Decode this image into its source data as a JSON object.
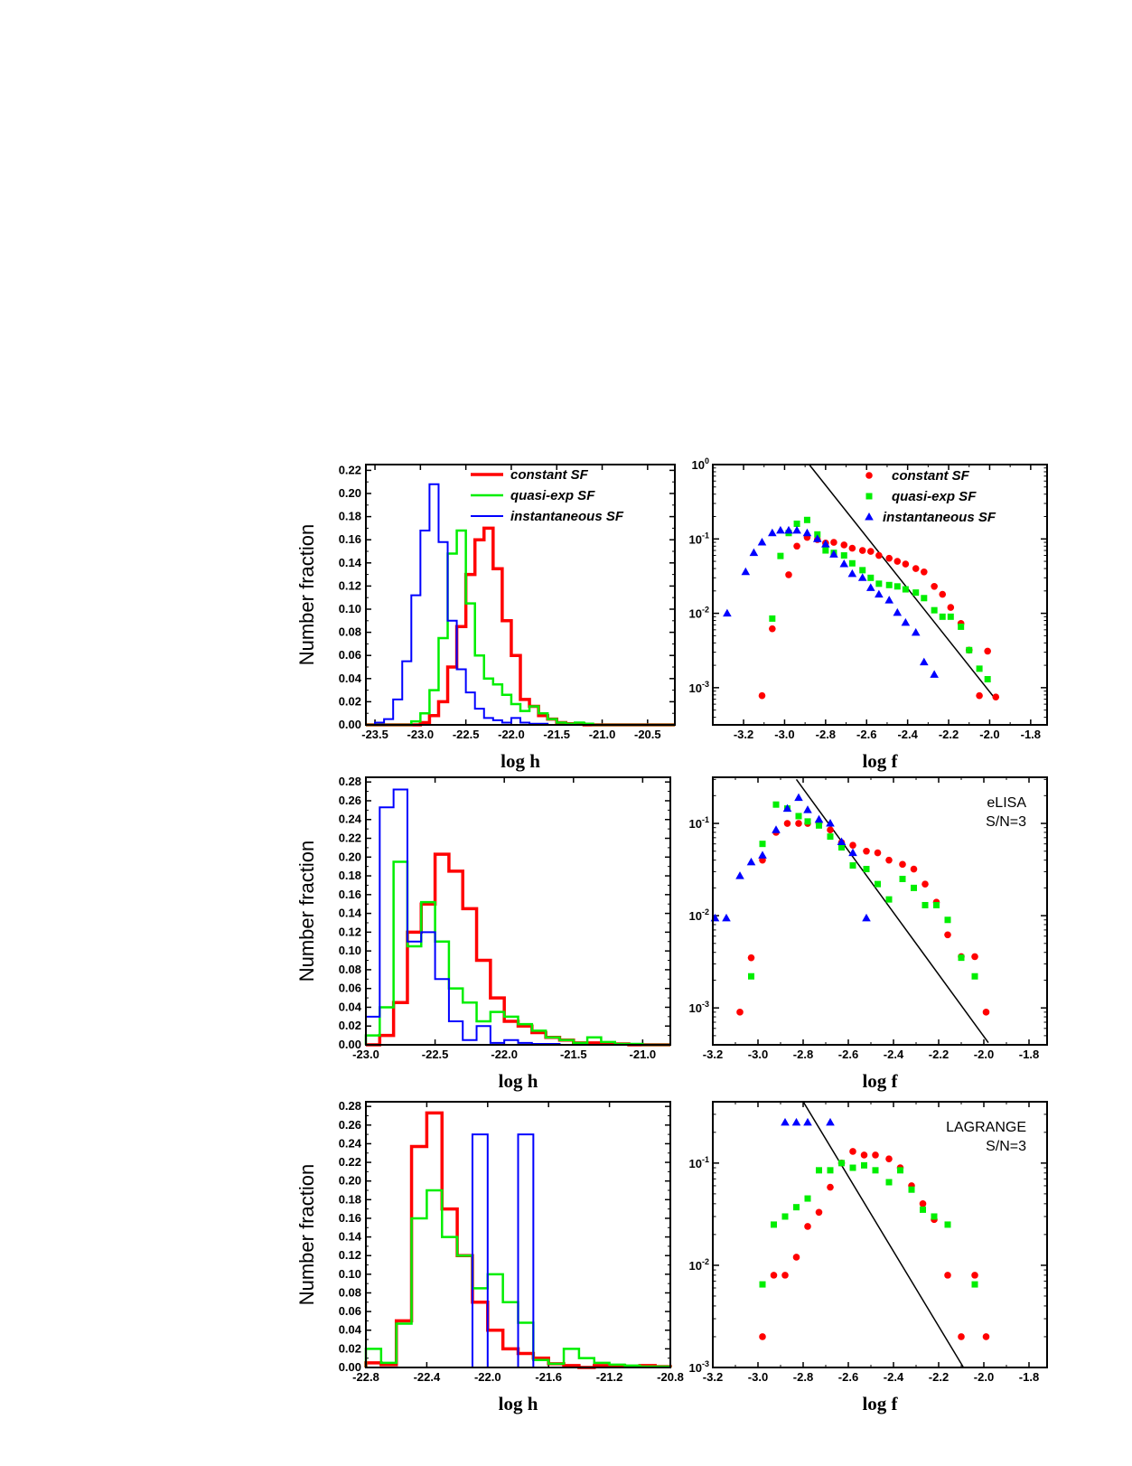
{
  "colors": {
    "constant": "#ff0000",
    "quasi": "#00ee00",
    "instant": "#0000ff",
    "fit": "#000000"
  },
  "chart_data": [
    {
      "id": "hist1",
      "type": "bar",
      "subtype": "step-histogram",
      "xlabel": "log h",
      "ylabel": "Number fraction",
      "xlim": [
        -23.6,
        -20.2
      ],
      "ylim": [
        0,
        0.225
      ],
      "xticks": [
        "-23.5",
        "-23.0",
        "-22.5",
        "-22.0",
        "-21.5",
        "-21.0",
        "-20.5"
      ],
      "yticks": [
        "0.00",
        "0.02",
        "0.04",
        "0.06",
        "0.08",
        "0.10",
        "0.12",
        "0.14",
        "0.16",
        "0.18",
        "0.20",
        "0.22"
      ],
      "bin_start": -23.6,
      "bin_width": 0.1,
      "legend": [
        "constant SF",
        "quasi-exp SF",
        "instantaneous SF"
      ],
      "series": [
        {
          "name": "constant SF",
          "values": [
            0,
            0,
            0,
            0,
            0,
            0,
            0.002,
            0.008,
            0.02,
            0.05,
            0.085,
            0.13,
            0.16,
            0.17,
            0.135,
            0.09,
            0.06,
            0.022,
            0.016,
            0.008,
            0.005,
            0.002,
            0.001,
            0.001,
            0,
            0,
            0,
            0,
            0,
            0,
            0,
            0,
            0,
            0
          ]
        },
        {
          "name": "quasi-exp SF",
          "values": [
            0,
            0,
            0,
            0,
            0,
            0.003,
            0.01,
            0.03,
            0.075,
            0.148,
            0.168,
            0.105,
            0.06,
            0.04,
            0.035,
            0.026,
            0.018,
            0.012,
            0.016,
            0.01,
            0.005,
            0.002,
            0.001,
            0.002,
            0.001,
            0,
            0,
            0,
            0,
            0,
            0,
            0,
            0,
            0
          ]
        },
        {
          "name": "instantaneous SF",
          "values": [
            0,
            0.002,
            0.005,
            0.022,
            0.055,
            0.112,
            0.168,
            0.208,
            0.158,
            0.09,
            0.048,
            0.028,
            0.014,
            0.006,
            0.004,
            0.002,
            0.006,
            0.002,
            0.001,
            0.001,
            0,
            0,
            0,
            0,
            0,
            0,
            0,
            0,
            0,
            0,
            0,
            0,
            0,
            0
          ]
        }
      ]
    },
    {
      "id": "freq1",
      "type": "scatter",
      "yscale": "log",
      "xlabel": "log f",
      "xlim": [
        -3.35,
        -1.72
      ],
      "ylim_log10": [
        -3.5,
        0
      ],
      "xticks": [
        "-3.2",
        "-3.0",
        "-2.8",
        "-2.6",
        "-2.4",
        "-2.2",
        "-2.0",
        "-1.8"
      ],
      "yticks": [
        {
          "base": "10",
          "exp": "0",
          "value": 0
        },
        {
          "base": "10",
          "exp": "-1",
          "value": -1
        },
        {
          "base": "10",
          "exp": "-2",
          "value": -2
        },
        {
          "base": "10",
          "exp": "-3",
          "value": -3
        }
      ],
      "legend": [
        "constant SF",
        "quasi-exp SF",
        "instantaneous SF"
      ],
      "fit_line": {
        "x": [
          -2.88,
          -1.98
        ],
        "y": [
          1.0,
          0.00075
        ]
      },
      "series": [
        {
          "name": "constant SF",
          "x": [
            -3.11,
            -3.06,
            -2.98,
            -2.94,
            -2.89,
            -2.84,
            -2.8,
            -2.76,
            -2.71,
            -2.67,
            -2.62,
            -2.58,
            -2.54,
            -2.49,
            -2.45,
            -2.41,
            -2.36,
            -2.32,
            -2.27,
            -2.23,
            -2.19,
            -2.14,
            -2.1,
            -2.05,
            -2.01,
            -1.97
          ],
          "y": [
            0.00078,
            0.0062,
            0.033,
            0.08,
            0.105,
            0.098,
            0.088,
            0.09,
            0.083,
            0.075,
            0.07,
            0.068,
            0.06,
            0.055,
            0.05,
            0.046,
            0.04,
            0.036,
            0.023,
            0.018,
            0.012,
            0.0073,
            0.0032,
            0.00078,
            0.0031,
            0.00075
          ]
        },
        {
          "name": "quasi-exp SF",
          "x": [
            -3.06,
            -3.02,
            -2.98,
            -2.94,
            -2.89,
            -2.84,
            -2.8,
            -2.76,
            -2.71,
            -2.67,
            -2.62,
            -2.58,
            -2.54,
            -2.49,
            -2.45,
            -2.41,
            -2.36,
            -2.32,
            -2.27,
            -2.23,
            -2.19,
            -2.14,
            -2.1,
            -2.05,
            -2.01
          ],
          "y": [
            0.0085,
            0.059,
            0.12,
            0.16,
            0.18,
            0.115,
            0.07,
            0.065,
            0.06,
            0.047,
            0.038,
            0.03,
            0.025,
            0.024,
            0.023,
            0.021,
            0.019,
            0.016,
            0.011,
            0.009,
            0.009,
            0.0066,
            0.0032,
            0.0018,
            0.0013
          ]
        },
        {
          "name": "instantaneous SF",
          "x": [
            -3.28,
            -3.19,
            -3.15,
            -3.11,
            -3.06,
            -3.02,
            -2.98,
            -2.94,
            -2.89,
            -2.84,
            -2.8,
            -2.76,
            -2.71,
            -2.67,
            -2.62,
            -2.58,
            -2.54,
            -2.49,
            -2.45,
            -2.41,
            -2.36,
            -2.32,
            -2.27
          ],
          "y": [
            0.01,
            0.036,
            0.065,
            0.09,
            0.12,
            0.13,
            0.13,
            0.13,
            0.12,
            0.1,
            0.085,
            0.062,
            0.046,
            0.034,
            0.03,
            0.022,
            0.018,
            0.015,
            0.0102,
            0.0075,
            0.0055,
            0.0022,
            0.0015
          ]
        }
      ]
    },
    {
      "id": "hist2",
      "type": "bar",
      "subtype": "step-histogram",
      "xlabel": "log h",
      "ylabel": "Number fraction",
      "xlim": [
        -23.0,
        -20.8
      ],
      "ylim": [
        0,
        0.285
      ],
      "xticks": [
        "-23.0",
        "-22.5",
        "-22.0",
        "-21.5",
        "-21.0"
      ],
      "yticks": [
        "0.00",
        "0.02",
        "0.04",
        "0.06",
        "0.08",
        "0.10",
        "0.12",
        "0.14",
        "0.16",
        "0.18",
        "0.20",
        "0.22",
        "0.24",
        "0.26",
        "0.28"
      ],
      "bin_start": -23.0,
      "bin_width": 0.1,
      "series": [
        {
          "name": "constant SF",
          "values": [
            0,
            0.01,
            0.045,
            0.12,
            0.15,
            0.203,
            0.185,
            0.145,
            0.09,
            0.05,
            0.025,
            0.02,
            0.013,
            0.008,
            0.005,
            0.002,
            0.002,
            0.001,
            0.001,
            0,
            0,
            0
          ]
        },
        {
          "name": "quasi-exp SF",
          "values": [
            0.01,
            0.04,
            0.195,
            0.105,
            0.152,
            0.11,
            0.06,
            0.045,
            0.025,
            0.035,
            0.03,
            0.022,
            0.015,
            0.008,
            0.005,
            0.002,
            0.008,
            0.003,
            0.001,
            0.001,
            0,
            0
          ]
        },
        {
          "name": "instantaneous SF",
          "values": [
            0.03,
            0.253,
            0.272,
            0.11,
            0.12,
            0.07,
            0.025,
            0.005,
            0.02,
            0.002,
            0.005,
            0.002,
            0.001,
            0.001,
            0,
            0,
            0,
            0,
            0,
            0,
            0,
            0
          ]
        }
      ]
    },
    {
      "id": "freq2",
      "type": "scatter",
      "yscale": "log",
      "xlabel": "log f",
      "xlim": [
        -3.2,
        -1.72
      ],
      "ylim_log10": [
        -3.4,
        -0.5
      ],
      "xticks": [
        "-3.2",
        "-3.0",
        "-2.8",
        "-2.6",
        "-2.4",
        "-2.2",
        "-2.0",
        "-1.8"
      ],
      "yticks": [
        {
          "base": "10",
          "exp": "-1",
          "value": -1
        },
        {
          "base": "10",
          "exp": "-2",
          "value": -2
        },
        {
          "base": "10",
          "exp": "-3",
          "value": -3
        }
      ],
      "annotation": [
        "eLISA",
        "S/N=3"
      ],
      "fit_line": {
        "x": [
          -2.83,
          -1.98
        ],
        "y": [
          0.3,
          0.00042
        ]
      },
      "series": [
        {
          "name": "constant SF",
          "x": [
            -3.08,
            -3.03,
            -2.98,
            -2.92,
            -2.87,
            -2.82,
            -2.78,
            -2.73,
            -2.68,
            -2.63,
            -2.58,
            -2.52,
            -2.47,
            -2.42,
            -2.36,
            -2.31,
            -2.26,
            -2.21,
            -2.16,
            -2.1,
            -2.04,
            -1.99
          ],
          "y": [
            0.0009,
            0.0035,
            0.04,
            0.08,
            0.1,
            0.1,
            0.1,
            0.1,
            0.085,
            0.062,
            0.058,
            0.05,
            0.048,
            0.04,
            0.036,
            0.032,
            0.022,
            0.014,
            0.0062,
            0.0036,
            0.0036,
            0.0009
          ]
        },
        {
          "name": "quasi-exp SF",
          "x": [
            -3.03,
            -2.98,
            -2.92,
            -2.87,
            -2.82,
            -2.78,
            -2.73,
            -2.68,
            -2.63,
            -2.58,
            -2.52,
            -2.47,
            -2.42,
            -2.36,
            -2.31,
            -2.26,
            -2.21,
            -2.16,
            -2.1,
            -2.04
          ],
          "y": [
            0.0022,
            0.06,
            0.16,
            0.145,
            0.12,
            0.105,
            0.095,
            0.072,
            0.055,
            0.035,
            0.032,
            0.022,
            0.015,
            0.025,
            0.02,
            0.013,
            0.013,
            0.009,
            0.0035,
            0.0022
          ]
        },
        {
          "name": "instantaneous SF",
          "x": [
            -3.19,
            -3.14,
            -3.08,
            -3.03,
            -2.98,
            -2.92,
            -2.87,
            -2.82,
            -2.78,
            -2.73,
            -2.68,
            -2.63,
            -2.58,
            -2.52
          ],
          "y": [
            0.0094,
            0.0094,
            0.027,
            0.038,
            0.045,
            0.085,
            0.145,
            0.19,
            0.14,
            0.11,
            0.1,
            0.063,
            0.048,
            0.0094
          ]
        }
      ]
    },
    {
      "id": "hist3",
      "type": "bar",
      "subtype": "step-histogram",
      "xlabel": "log h",
      "ylabel": "Number fraction",
      "xlim": [
        -22.8,
        -20.8
      ],
      "ylim": [
        0,
        0.285
      ],
      "xticks": [
        "-22.8",
        "-22.4",
        "-22.0",
        "-21.6",
        "-21.2",
        "-20.8"
      ],
      "yticks": [
        "0.00",
        "0.02",
        "0.04",
        "0.06",
        "0.08",
        "0.10",
        "0.12",
        "0.14",
        "0.16",
        "0.18",
        "0.20",
        "0.22",
        "0.24",
        "0.26",
        "0.28"
      ],
      "bin_start": -22.8,
      "bin_width": 0.1,
      "series": [
        {
          "name": "constant SF",
          "values": [
            0.005,
            0.003,
            0.05,
            0.237,
            0.273,
            0.17,
            0.12,
            0.07,
            0.04,
            0.02,
            0.015,
            0.01,
            0.004,
            0.002,
            0,
            0.002,
            0.002,
            0.001,
            0.002,
            0.001
          ]
        },
        {
          "name": "quasi-exp SF",
          "values": [
            0.02,
            0.005,
            0.047,
            0.16,
            0.19,
            0.14,
            0.12,
            0.085,
            0.1,
            0.07,
            0.048,
            0.008,
            0.004,
            0.02,
            0.01,
            0.005,
            0.003,
            0.002,
            0.001,
            0.001
          ]
        },
        {
          "name": "instantaneous SF",
          "values": [
            0,
            0,
            0,
            0,
            0,
            0,
            0,
            0.25,
            0,
            0,
            0.25,
            0,
            0,
            0,
            0,
            0,
            0,
            0,
            0,
            0
          ]
        }
      ]
    },
    {
      "id": "freq3",
      "type": "scatter",
      "yscale": "log",
      "xlabel": "log f",
      "xlim": [
        -3.2,
        -1.72
      ],
      "ylim_log10": [
        -3,
        -0.4
      ],
      "xticks": [
        "-3.2",
        "-3.0",
        "-2.8",
        "-2.6",
        "-2.4",
        "-2.2",
        "-2.0",
        "-1.8"
      ],
      "yticks": [
        {
          "base": "10",
          "exp": "-1",
          "value": -1
        },
        {
          "base": "10",
          "exp": "-2",
          "value": -2
        },
        {
          "base": "10",
          "exp": "-3",
          "value": -3
        }
      ],
      "annotation": [
        "LAGRANGE",
        "S/N=3"
      ],
      "fit_line": {
        "x": [
          -2.8,
          -2.09
        ],
        "y": [
          0.4,
          0.001
        ]
      },
      "series": [
        {
          "name": "constant SF",
          "x": [
            -2.98,
            -2.93,
            -2.88,
            -2.83,
            -2.78,
            -2.73,
            -2.68,
            -2.63,
            -2.58,
            -2.53,
            -2.48,
            -2.42,
            -2.37,
            -2.32,
            -2.27,
            -2.22,
            -2.16,
            -2.1,
            -2.04,
            -1.99
          ],
          "y": [
            0.002,
            0.008,
            0.008,
            0.012,
            0.024,
            0.033,
            0.058,
            0.1,
            0.13,
            0.12,
            0.12,
            0.11,
            0.09,
            0.06,
            0.04,
            0.028,
            0.008,
            0.002,
            0.008,
            0.002
          ]
        },
        {
          "name": "quasi-exp SF",
          "x": [
            -2.98,
            -2.93,
            -2.88,
            -2.83,
            -2.78,
            -2.73,
            -2.68,
            -2.63,
            -2.58,
            -2.53,
            -2.48,
            -2.42,
            -2.37,
            -2.32,
            -2.27,
            -2.22,
            -2.16,
            -2.04
          ],
          "y": [
            0.0065,
            0.025,
            0.03,
            0.037,
            0.045,
            0.085,
            0.085,
            0.1,
            0.09,
            0.095,
            0.085,
            0.065,
            0.085,
            0.055,
            0.035,
            0.03,
            0.025,
            0.0065
          ]
        },
        {
          "name": "instantaneous SF",
          "x": [
            -2.88,
            -2.83,
            -2.78,
            -2.68
          ],
          "y": [
            0.25,
            0.25,
            0.25,
            0.25
          ]
        }
      ]
    }
  ]
}
